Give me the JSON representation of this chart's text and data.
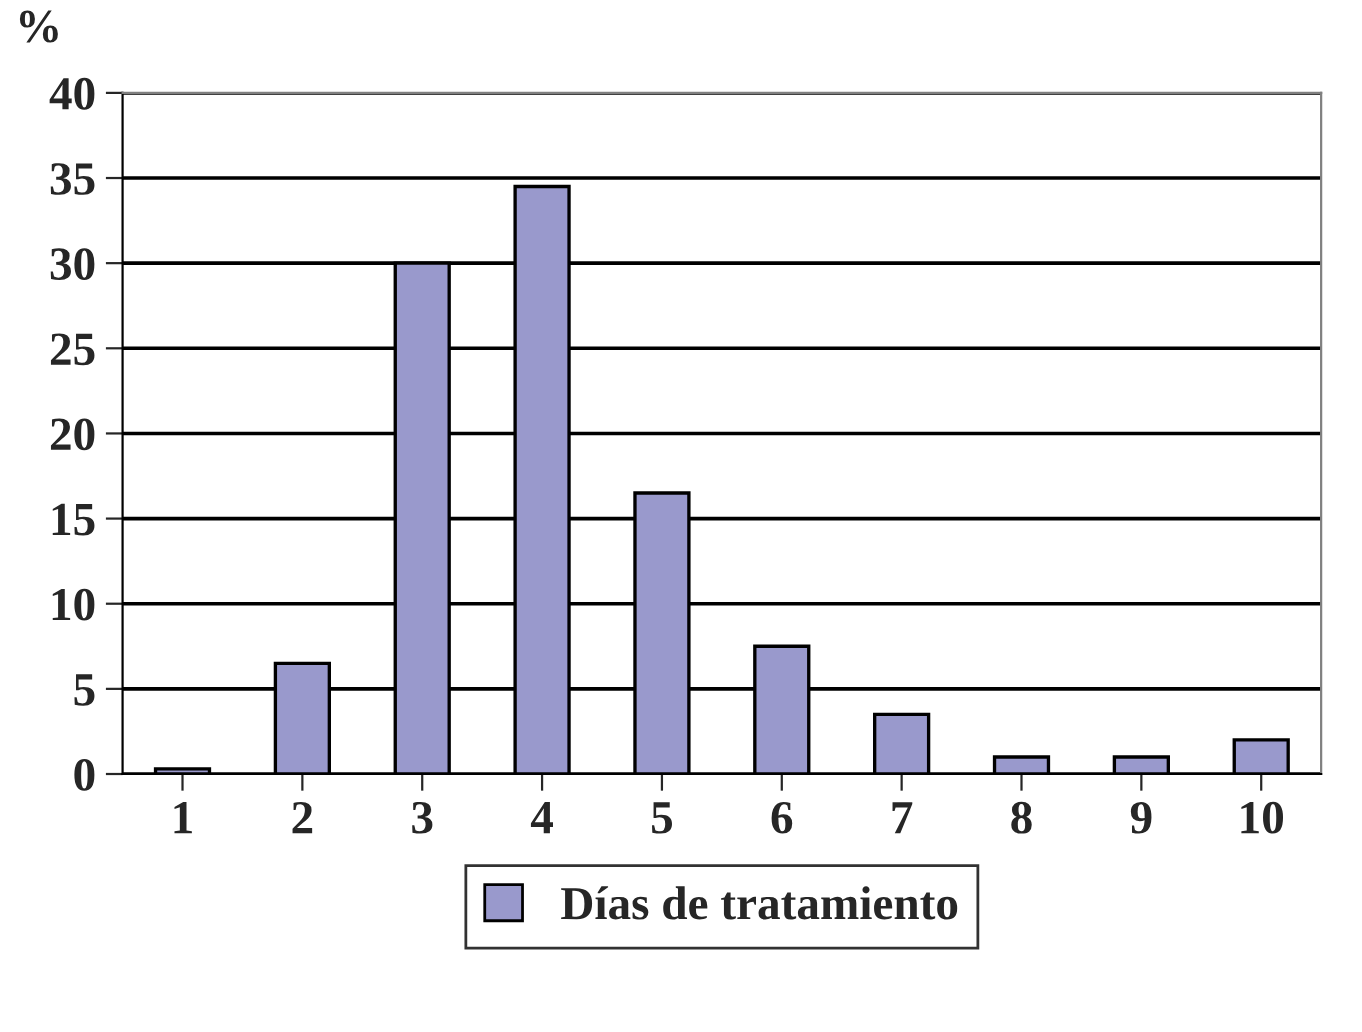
{
  "chart_data": {
    "type": "bar",
    "ylabel": "%",
    "categories": [
      "1",
      "2",
      "3",
      "4",
      "5",
      "6",
      "7",
      "8",
      "9",
      "10"
    ],
    "series": [
      {
        "name": "Días de tratamiento",
        "color": "#9999cc",
        "values": [
          0.3,
          6.5,
          30,
          34.5,
          16.5,
          7.5,
          3.5,
          1,
          1,
          2
        ]
      }
    ],
    "ylim": [
      0,
      40
    ],
    "yticks": [
      0,
      5,
      10,
      15,
      20,
      25,
      30,
      35,
      40
    ],
    "grid": "y",
    "legend": "bottom"
  }
}
